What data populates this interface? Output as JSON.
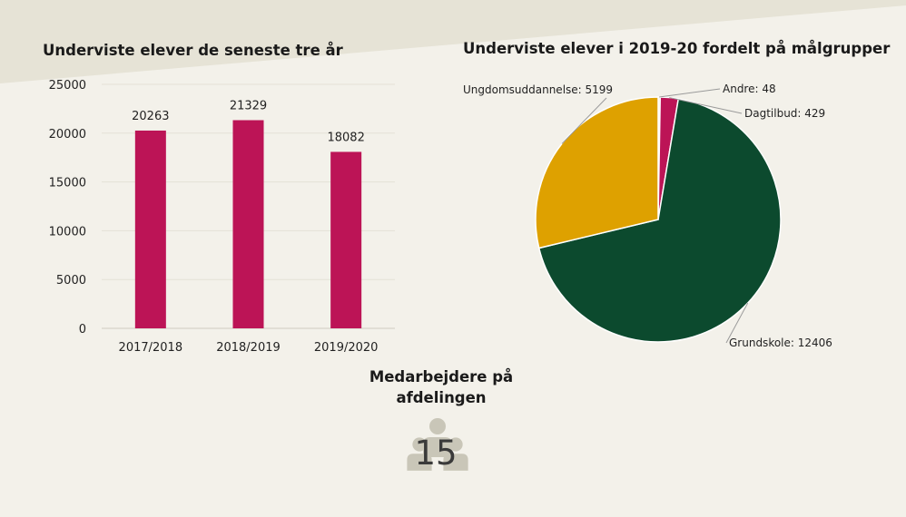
{
  "colors": {
    "background": "#f3f1ea",
    "banner": "#e6e3d6",
    "bar": "#bc1456",
    "people": "#c9c6b8"
  },
  "staff": {
    "title": "Medarbejdere på afdelingen",
    "count": "15",
    "icon": "people-group-icon"
  },
  "chart_data": [
    {
      "type": "bar",
      "title": "Underviste elever de seneste tre år",
      "categories": [
        "2017/2018",
        "2018/2019",
        "2019/2020"
      ],
      "values": [
        20263,
        21329,
        18082
      ],
      "data_labels": [
        "20263",
        "21329",
        "18082"
      ],
      "ylim": [
        0,
        25000
      ],
      "yticks": [
        0,
        5000,
        10000,
        15000,
        20000,
        25000
      ],
      "grid": true,
      "legend": "none"
    },
    {
      "type": "pie",
      "title": "Underviste elever i 2019-20 fordelt på målgrupper",
      "labels": [
        "Andre",
        "Dagtilbud",
        "Grundskole",
        "Ungdomsuddannelse"
      ],
      "values": [
        48,
        429,
        12406,
        5199
      ],
      "data_labels": [
        "Andre: 48",
        "Dagtilbud: 429",
        "Grundskole: 12406",
        "Ungdomsuddannelse: 5199"
      ],
      "colors": [
        "#f5eed6",
        "#bc1456",
        "#0c4a2e",
        "#dea100"
      ],
      "legend": "none"
    }
  ]
}
